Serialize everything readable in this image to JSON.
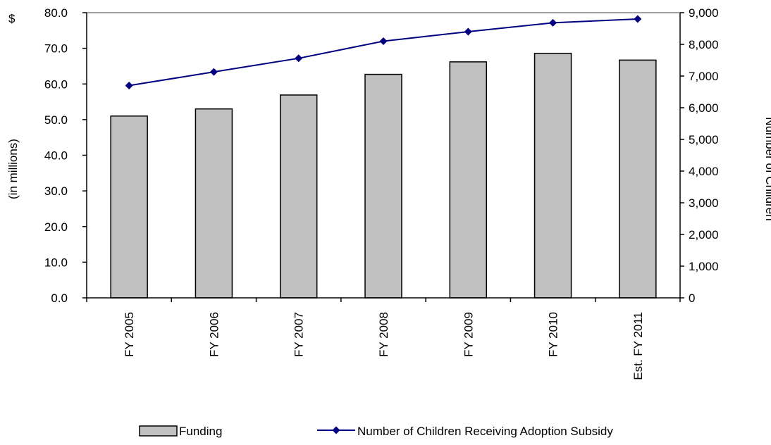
{
  "chart_data": {
    "type": "bar",
    "categories": [
      "FY 2005",
      "FY 2006",
      "FY 2007",
      "FY 2008",
      "FY 2009",
      "FY 2010",
      "Est. FY 2011"
    ],
    "y_left": {
      "unit_label": "$",
      "ylabel": "(in millions)",
      "ylim": [
        0,
        80
      ],
      "ticks": [
        0,
        10,
        20,
        30,
        40,
        50,
        60,
        70,
        80
      ],
      "tick_labels": [
        "0.0",
        "10.0",
        "20.0",
        "30.0",
        "40.0",
        "50.0",
        "60.0",
        "70.0",
        "80.0"
      ]
    },
    "y_right": {
      "ylabel": "Number of Children",
      "ylim": [
        0,
        9000
      ],
      "ticks": [
        0,
        1000,
        2000,
        3000,
        4000,
        5000,
        6000,
        7000,
        8000,
        9000
      ],
      "tick_labels": [
        "0",
        "1,000",
        "2,000",
        "3,000",
        "4,000",
        "5,000",
        "6,000",
        "7,000",
        "8,000",
        "9,000"
      ]
    },
    "series": [
      {
        "name": "Funding",
        "type": "bar",
        "axis": "left",
        "color": "#c0c0c0",
        "values": [
          51.0,
          53.0,
          56.9,
          62.7,
          66.2,
          68.6,
          66.7
        ]
      },
      {
        "name": "Number of Children Receiving Adoption Subsidy",
        "type": "line",
        "axis": "right",
        "color": "#000080",
        "values": [
          6700,
          7130,
          7560,
          8100,
          8400,
          8680,
          8800
        ]
      }
    ],
    "grid": false,
    "legend_position": "bottom"
  }
}
